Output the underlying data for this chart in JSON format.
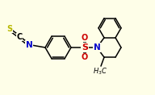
{
  "bg_color": "#fefee8",
  "atom_colors": {
    "S_thio": "#b8b800",
    "C": "#000000",
    "N": "#0000cc",
    "S_sulfonyl": "#cc0000",
    "O": "#cc0000",
    "H": "#000000"
  },
  "bond_color": "#000000",
  "figsize": [
    1.92,
    1.18
  ],
  "dpi": 100,
  "lw": 1.1
}
